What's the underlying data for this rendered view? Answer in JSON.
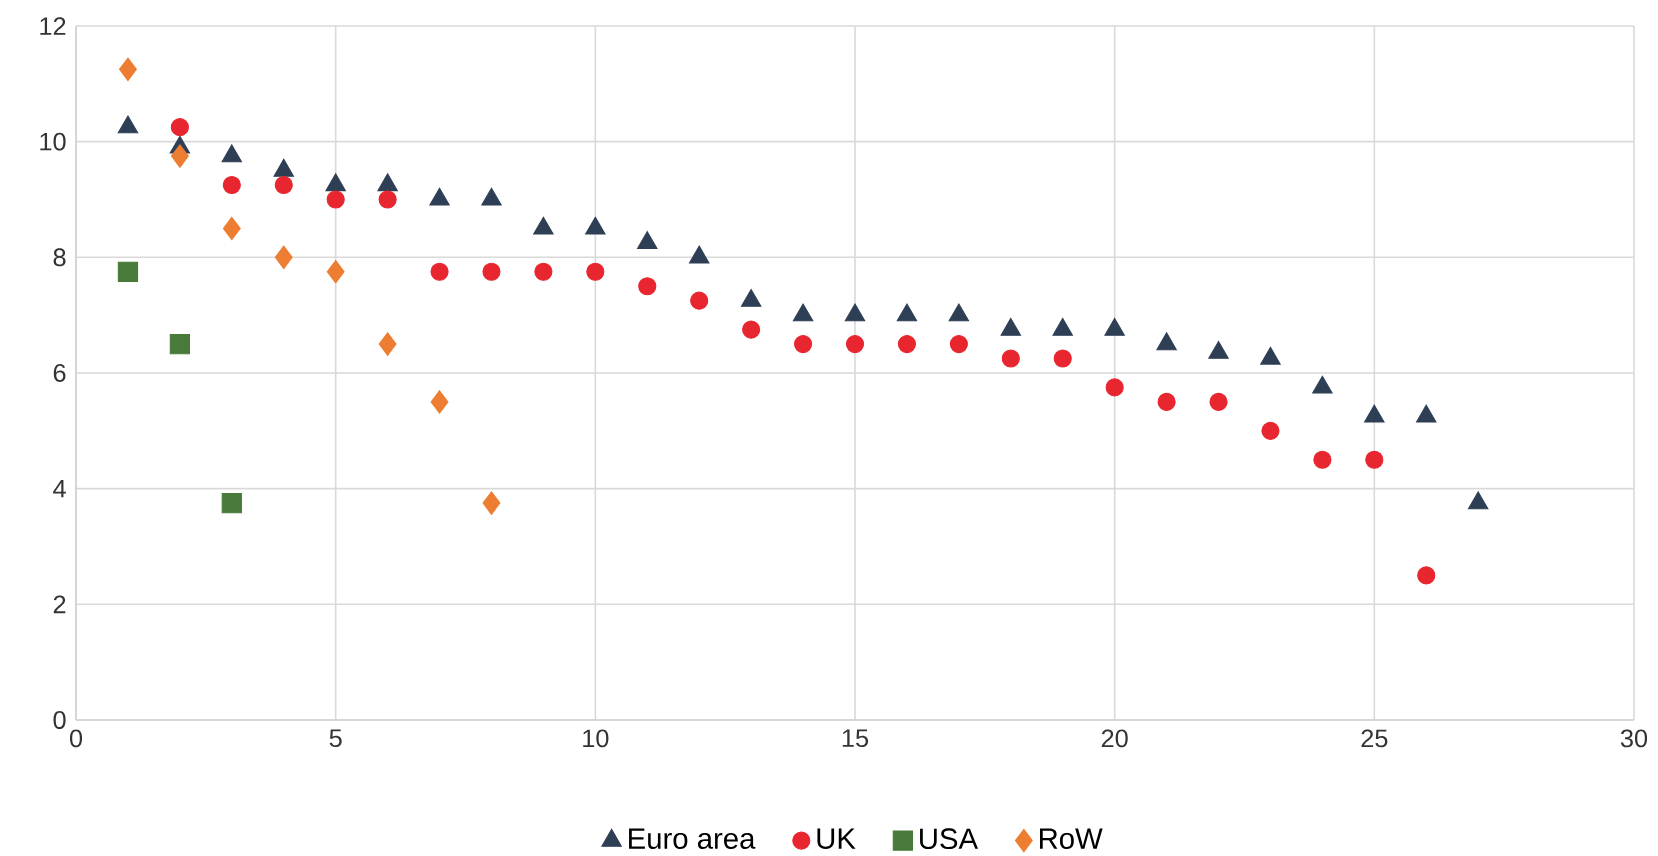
{
  "chart_data": {
    "type": "scatter",
    "xlim": [
      0,
      30
    ],
    "ylim": [
      0,
      12
    ],
    "xticks": [
      0,
      5,
      10,
      15,
      20,
      25,
      30
    ],
    "yticks": [
      0,
      2,
      4,
      6,
      8,
      10,
      12
    ],
    "grid": true,
    "legend": "bottom",
    "series": [
      {
        "name": "Euro area",
        "color": "#2e3f55",
        "marker": "triangle",
        "x": [
          1,
          2,
          3,
          4,
          5,
          6,
          7,
          8,
          9,
          10,
          11,
          12,
          13,
          14,
          15,
          16,
          17,
          18,
          19,
          20,
          21,
          22,
          23,
          24,
          25,
          26,
          27
        ],
        "values": [
          10.25,
          9.9,
          9.75,
          9.5,
          9.25,
          9.25,
          9.0,
          9.0,
          8.5,
          8.5,
          8.25,
          8.0,
          7.25,
          7.0,
          7.0,
          7.0,
          7.0,
          6.75,
          6.75,
          6.75,
          6.5,
          6.35,
          6.25,
          5.75,
          5.25,
          5.25,
          3.75
        ]
      },
      {
        "name": "UK",
        "color": "#e8262f",
        "marker": "circle",
        "x": [
          2,
          3,
          4,
          5,
          6,
          7,
          8,
          9,
          10,
          11,
          12,
          13,
          14,
          15,
          16,
          17,
          18,
          19,
          20,
          21,
          22,
          23,
          24,
          25,
          26
        ],
        "values": [
          10.25,
          9.25,
          9.25,
          9.0,
          9.0,
          7.75,
          7.75,
          7.75,
          7.75,
          7.5,
          7.25,
          6.75,
          6.5,
          6.5,
          6.5,
          6.5,
          6.25,
          6.25,
          5.75,
          5.5,
          5.5,
          5.0,
          4.5,
          4.5,
          2.5
        ]
      },
      {
        "name": "USA",
        "color": "#4a7a3a",
        "marker": "square",
        "x": [
          1,
          2,
          3
        ],
        "values": [
          7.75,
          6.5,
          3.75
        ]
      },
      {
        "name": "RoW",
        "color": "#ed7d31",
        "marker": "diamond",
        "x": [
          1,
          2,
          3,
          4,
          5,
          6,
          7,
          8
        ],
        "values": [
          11.25,
          9.75,
          8.5,
          8.0,
          7.75,
          6.5,
          5.5,
          3.75
        ]
      }
    ]
  }
}
